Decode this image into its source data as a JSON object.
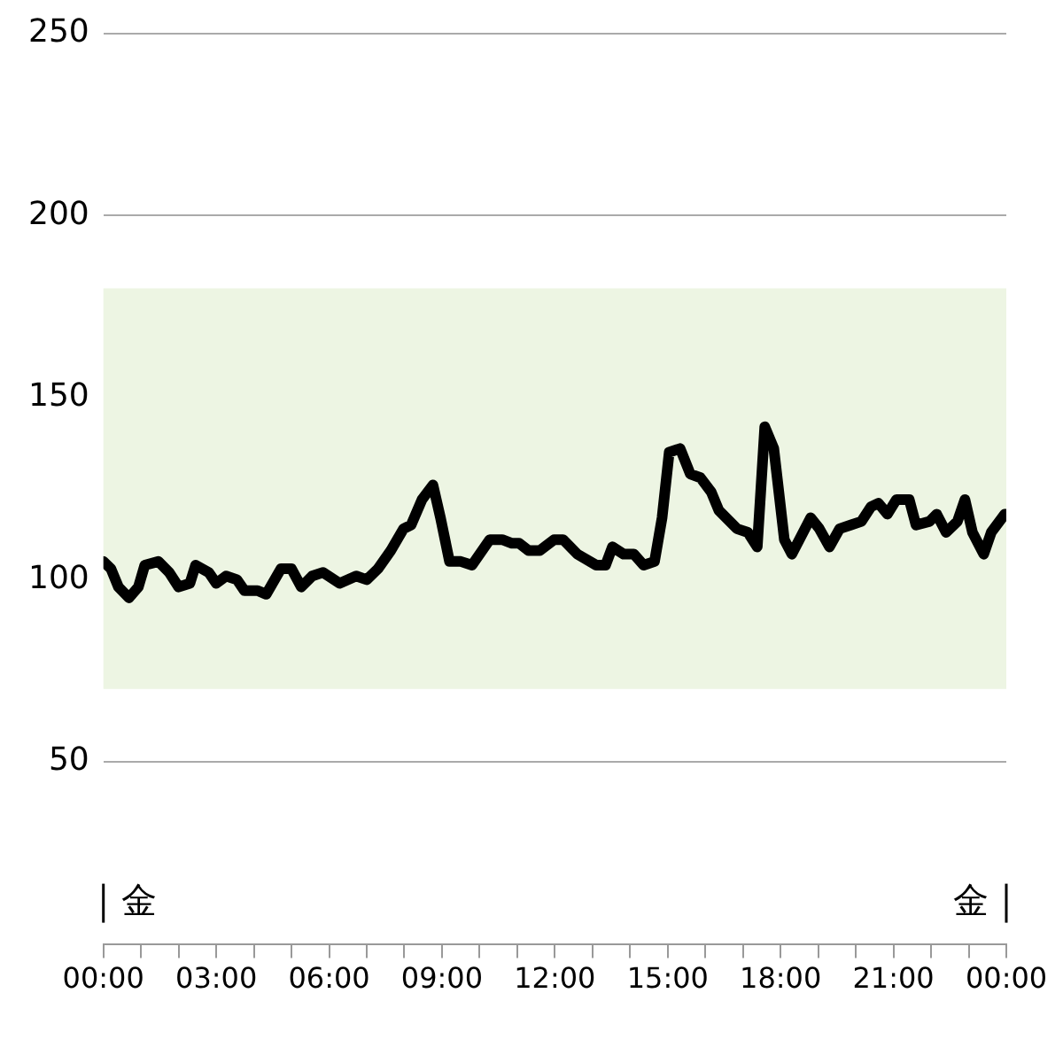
{
  "chart_data": {
    "type": "line",
    "series": [
      {
        "color": "#000000",
        "x": [
          0,
          0.2,
          0.4,
          0.68,
          0.93,
          1.1,
          1.46,
          1.75,
          2.0,
          2.3,
          2.45,
          2.8,
          3.0,
          3.26,
          3.55,
          3.75,
          4.1,
          4.33,
          4.72,
          5.0,
          5.26,
          5.55,
          5.84,
          6.28,
          6.72,
          7.0,
          7.3,
          7.64,
          7.98,
          8.18,
          8.47,
          8.76,
          8.96,
          9.2,
          9.5,
          9.8,
          10.27,
          10.6,
          10.86,
          11.05,
          11.3,
          11.6,
          11.98,
          12.22,
          12.6,
          13.1,
          13.35,
          13.53,
          13.83,
          14.1,
          14.36,
          14.65,
          14.85,
          15.04,
          15.33,
          15.6,
          15.87,
          16.16,
          16.36,
          16.84,
          17.13,
          17.38,
          17.58,
          17.82,
          18.1,
          18.3,
          18.55,
          18.8,
          19.03,
          19.3,
          19.57,
          19.86,
          20.15,
          20.4,
          20.6,
          20.84,
          21.08,
          21.42,
          21.6,
          21.96,
          22.15,
          22.4,
          22.7,
          22.9,
          23.1,
          23.4,
          23.6,
          23.96
        ],
        "values": [
          105,
          103,
          98,
          95,
          98,
          104,
          105,
          102,
          98,
          99,
          104,
          102,
          99,
          101,
          100,
          97,
          97,
          96,
          103,
          103,
          98,
          101,
          102,
          99,
          101,
          100,
          103,
          108,
          114,
          115,
          122,
          126,
          117,
          105,
          105,
          104,
          111,
          111,
          110,
          110,
          108,
          108,
          111,
          111,
          107,
          104,
          104,
          109,
          107,
          107,
          104,
          105,
          117,
          135,
          136,
          129,
          128,
          124,
          119,
          114,
          113,
          109,
          142,
          136,
          111,
          107,
          112,
          117,
          114,
          109,
          114,
          115,
          116,
          120,
          121,
          118,
          122,
          122,
          115,
          116,
          118,
          113,
          116,
          122,
          113,
          107,
          113,
          118
        ]
      }
    ],
    "xlim": [
      0,
      24
    ],
    "xticks": [
      {
        "value": 0,
        "label": "00:00"
      },
      {
        "value": 1,
        "label": null
      },
      {
        "value": 2,
        "label": null
      },
      {
        "value": 3,
        "label": "03:00"
      },
      {
        "value": 4,
        "label": null
      },
      {
        "value": 5,
        "label": null
      },
      {
        "value": 6,
        "label": "06:00"
      },
      {
        "value": 7,
        "label": null
      },
      {
        "value": 8,
        "label": null
      },
      {
        "value": 9,
        "label": "09:00"
      },
      {
        "value": 10,
        "label": null
      },
      {
        "value": 11,
        "label": null
      },
      {
        "value": 12,
        "label": "12:00"
      },
      {
        "value": 13,
        "label": null
      },
      {
        "value": 14,
        "label": null
      },
      {
        "value": 15,
        "label": "15:00"
      },
      {
        "value": 16,
        "label": null
      },
      {
        "value": 17,
        "label": null
      },
      {
        "value": 18,
        "label": "18:00"
      },
      {
        "value": 19,
        "label": null
      },
      {
        "value": 20,
        "label": null
      },
      {
        "value": 21,
        "label": "21:00"
      },
      {
        "value": 22,
        "label": null
      },
      {
        "value": 23,
        "label": null
      },
      {
        "value": 24,
        "label": "00:00"
      }
    ],
    "ylim": [
      0,
      250
    ],
    "yticks": [
      50,
      100,
      150,
      200,
      250
    ],
    "bands": [
      {
        "axis": "y",
        "from": 70,
        "to": 180,
        "color": "#edf5e3"
      }
    ],
    "annotations": [
      "金",
      "金"
    ],
    "grid": "y",
    "legend": false,
    "marker": "none",
    "line_style": "solid"
  }
}
